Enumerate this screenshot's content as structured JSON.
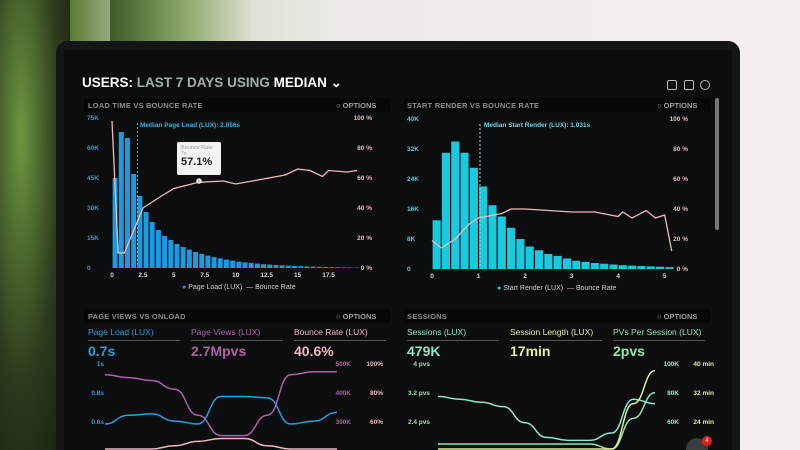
{
  "header": {
    "prefix": "USERS:",
    "range": "LAST 7 DAYS",
    "using": "USING",
    "metric": "MEDIAN"
  },
  "toolbar_icons": [
    "monitor-icon",
    "image-icon",
    "help-icon"
  ],
  "panels": {
    "load": {
      "title": "LOAD TIME VS BOUNCE RATE",
      "options": "OPTIONS",
      "median_label": "Median Page Load (LUX): 2.056s",
      "tooltip": {
        "title": "Bounce Rate",
        "sub": "7s",
        "value": "57.1%"
      },
      "legend": [
        "Page Load (LUX)",
        "Bounce Rate"
      ]
    },
    "render": {
      "title": "START RENDER VS BOUNCE RATE",
      "options": "OPTIONS",
      "median_label": "Median Start Render (LUX): 1.031s",
      "legend": [
        "Start Render (LUX)",
        "Bounce Rate"
      ]
    },
    "pageviews": {
      "title": "PAGE VIEWS VS ONLOAD",
      "options": "OPTIONS",
      "kpis": [
        {
          "label": "Page Load (LUX)",
          "value": "0.7s",
          "color": "#2a9fd8"
        },
        {
          "label": "Page Views (LUX)",
          "value": "2.7Mpvs",
          "color": "#b25fa8"
        },
        {
          "label": "Bounce Rate (LUX)",
          "value": "40.6%",
          "color": "#f2b7c3"
        }
      ],
      "left_ticks": [
        "1s",
        "0.8s",
        "0.6s"
      ],
      "right_ticks_a": [
        "500K",
        "400K",
        "300K"
      ],
      "right_ticks_b": [
        "100%",
        "80%",
        "60%"
      ]
    },
    "sessions": {
      "title": "SESSIONS",
      "options": "OPTIONS",
      "kpis": [
        {
          "label": "Sessions (LUX)",
          "value": "479K",
          "color": "#8ee6cf"
        },
        {
          "label": "Session Length (LUX)",
          "value": "17min",
          "color": "#e4ee9c"
        },
        {
          "label": "PVs Per Session (LUX)",
          "value": "2pvs",
          "color": "#8ee8b0"
        }
      ],
      "left_ticks": [
        "4 pvs",
        "3.2 pvs",
        "2.4 pvs"
      ],
      "right_ticks_a": [
        "100K",
        "80K",
        "60K"
      ],
      "right_ticks_b": [
        "40 min",
        "32 min",
        "24 min"
      ]
    }
  },
  "notification_badge": "4",
  "chart_data": [
    {
      "type": "bar+line",
      "id": "load",
      "xlim": [
        0,
        19.8
      ],
      "xticks": [
        "0",
        "2.5",
        "5",
        "7.5",
        "10",
        "12.5",
        "15",
        "17.5"
      ],
      "ylim": [
        0,
        75000
      ],
      "yticks": [
        "0",
        "15K",
        "30K",
        "45K",
        "60K",
        "75K"
      ],
      "y2lim": [
        0,
        100
      ],
      "y2ticks": [
        "0 %",
        "20 %",
        "40 %",
        "60 %",
        "80 %",
        "100 %"
      ],
      "bar_color": "#1a9ae0",
      "line_color": "#f0b9c0",
      "median_x": 2.056,
      "bins": {
        "start": 0,
        "width": 0.5,
        "values": [
          45000,
          68000,
          65000,
          47000,
          36000,
          28000,
          23000,
          19000,
          16000,
          14000,
          12000,
          10500,
          9200,
          8000,
          7000,
          6200,
          5400,
          4800,
          4200,
          3700,
          3200,
          2800,
          2500,
          2200,
          1900,
          1700,
          1500,
          1300,
          1150,
          1000,
          900,
          800,
          700,
          600,
          500,
          400,
          350,
          300,
          250,
          200
        ]
      },
      "line": [
        [
          0,
          98
        ],
        [
          0.5,
          10
        ],
        [
          1,
          10
        ],
        [
          1.6,
          22
        ],
        [
          2.5,
          40
        ],
        [
          4,
          48
        ],
        [
          5,
          53
        ],
        [
          7,
          57.1
        ],
        [
          9,
          58
        ],
        [
          10,
          56
        ],
        [
          12,
          59
        ],
        [
          14,
          62
        ],
        [
          15,
          66
        ],
        [
          16,
          65
        ],
        [
          17,
          61
        ],
        [
          17.5,
          65
        ],
        [
          19,
          64
        ],
        [
          19.8,
          65
        ]
      ]
    },
    {
      "type": "bar+line",
      "id": "render",
      "xlim": [
        0,
        5.2
      ],
      "xticks": [
        "0",
        "1",
        "2",
        "3",
        "4",
        "5"
      ],
      "ylim": [
        0,
        40000
      ],
      "yticks": [
        "0",
        "8K",
        "16K",
        "24K",
        "32K",
        "40K"
      ],
      "y2lim": [
        0,
        100
      ],
      "y2ticks": [
        "0 %",
        "20 %",
        "40 %",
        "60 %",
        "80 %",
        "100 %"
      ],
      "bar_color": "#19c9dd",
      "line_color": "#f0b9c0",
      "median_x": 1.031,
      "bins": {
        "start": 0.1,
        "width": 0.2,
        "values": [
          13000,
          31000,
          34000,
          31000,
          27000,
          22000,
          17000,
          14000,
          11000,
          8000,
          6000,
          5000,
          4000,
          3500,
          2800,
          2200,
          1900,
          1600,
          1400,
          1200,
          1000,
          900,
          800,
          700,
          600,
          500
        ]
      },
      "line": [
        [
          0,
          19
        ],
        [
          0.2,
          14
        ],
        [
          0.5,
          20
        ],
        [
          0.8,
          30
        ],
        [
          1,
          34
        ],
        [
          1.5,
          37
        ],
        [
          1.7,
          40
        ],
        [
          2,
          40
        ],
        [
          3,
          38
        ],
        [
          3.5,
          38
        ],
        [
          4,
          35
        ],
        [
          4.1,
          38
        ],
        [
          4.3,
          34
        ],
        [
          4.6,
          39
        ],
        [
          4.8,
          34
        ],
        [
          5,
          36
        ],
        [
          5.15,
          12
        ]
      ]
    },
    {
      "type": "line",
      "id": "pageviews",
      "series": [
        {
          "name": "Page Load (LUX)",
          "color": "#2a9fd8",
          "axis": "s",
          "values": [
            0.6,
            0.66,
            0.67,
            0.62,
            0.6,
            0.79,
            0.79,
            0.78,
            0.6,
            0.62,
            0.68
          ]
        },
        {
          "name": "Page Views (LUX)",
          "color": "#b25fa8",
          "axis": "K",
          "values": [
            470,
            460,
            450,
            420,
            330,
            260,
            260,
            330,
            470,
            480,
            480
          ]
        },
        {
          "name": "Bounce Rate (LUX)",
          "color": "#f2b7c3",
          "axis": "%",
          "values": [
            40,
            40,
            42,
            45,
            48,
            50,
            50,
            45,
            38,
            36,
            36
          ]
        }
      ]
    },
    {
      "type": "line",
      "id": "sessions",
      "series": [
        {
          "name": "Sessions (LUX)",
          "color": "#8ee6cf",
          "axis": "K",
          "values": [
            80,
            78,
            76,
            73,
            62,
            52,
            50,
            50,
            55,
            78,
            75
          ]
        },
        {
          "name": "PVs Per Session (LUX)",
          "color": "#8ee8b0",
          "axis": "pvs",
          "values": [
            1.9,
            1.9,
            1.9,
            1.9,
            1.9,
            1.9,
            1.9,
            1.9,
            1.7,
            2.6,
            3.3
          ]
        },
        {
          "name": "Session Length (LUX)",
          "color": "#e4ee9c",
          "axis": "min",
          "values": [
            12,
            13,
            14,
            10,
            8,
            8,
            9,
            9,
            14,
            30,
            39
          ]
        }
      ]
    }
  ]
}
